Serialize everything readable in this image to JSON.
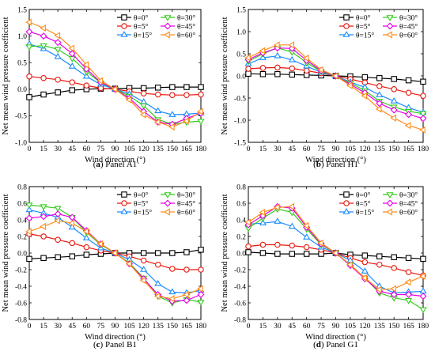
{
  "figure": {
    "angles": [
      "0",
      "5",
      "15",
      "30",
      "45",
      "60"
    ],
    "legend_prefix": "θ=",
    "legend_suffix": "°",
    "xlabel": "Wind direction (°)",
    "ylabel": "Net mean wind pressure coefficient",
    "colors": [
      "#000000",
      "#e8160c",
      "#1a8cff",
      "#33cc1a",
      "#e600e6",
      "#ff8c1a"
    ],
    "markers": [
      "square",
      "circle",
      "triangle-up",
      "triangle-down",
      "diamond",
      "triangle-left"
    ]
  },
  "chart_data": [
    {
      "type": "line",
      "caption_letter": "(a)",
      "caption_text": "Panel A1",
      "x": [
        0,
        15,
        30,
        45,
        60,
        75,
        90,
        105,
        120,
        135,
        150,
        165,
        180
      ],
      "xlim": [
        0,
        180
      ],
      "ylim": [
        -1.0,
        1.5
      ],
      "yticks": [
        -1.0,
        -0.5,
        0.0,
        0.5,
        1.0,
        1.5
      ],
      "series": [
        {
          "name": "θ=0°",
          "values": [
            -0.15,
            -0.1,
            -0.06,
            -0.02,
            0.0,
            0.01,
            0.01,
            0.02,
            0.02,
            0.03,
            0.04,
            0.04,
            0.04
          ]
        },
        {
          "name": "θ=5°",
          "values": [
            0.24,
            0.21,
            0.18,
            0.13,
            0.07,
            0.02,
            0.0,
            -0.04,
            -0.08,
            -0.1,
            -0.11,
            -0.11,
            -0.1
          ]
        },
        {
          "name": "θ=15°",
          "values": [
            0.85,
            0.76,
            0.61,
            0.43,
            0.24,
            0.09,
            0.0,
            -0.09,
            -0.24,
            -0.41,
            -0.48,
            -0.47,
            -0.45
          ]
        },
        {
          "name": "θ=30°",
          "values": [
            0.8,
            0.82,
            0.75,
            0.58,
            0.33,
            0.12,
            0.0,
            -0.13,
            -0.31,
            -0.57,
            -0.66,
            -0.62,
            -0.6
          ]
        },
        {
          "name": "θ=45°",
          "values": [
            1.08,
            1.0,
            0.88,
            0.67,
            0.38,
            0.13,
            0.0,
            -0.17,
            -0.42,
            -0.62,
            -0.66,
            -0.55,
            -0.45
          ]
        },
        {
          "name": "θ=60°",
          "values": [
            1.26,
            1.15,
            1.01,
            0.77,
            0.46,
            0.16,
            0.0,
            -0.2,
            -0.48,
            -0.62,
            -0.71,
            -0.6,
            -0.42
          ]
        }
      ]
    },
    {
      "type": "line",
      "caption_letter": "(b)",
      "caption_text": "Panel H1",
      "x": [
        0,
        15,
        30,
        45,
        60,
        75,
        90,
        105,
        120,
        135,
        150,
        165,
        180
      ],
      "xlim": [
        0,
        180
      ],
      "ylim": [
        -1.5,
        1.5
      ],
      "yticks": [
        -1.5,
        -1.0,
        -0.5,
        0.0,
        0.5,
        1.0,
        1.5
      ],
      "series": [
        {
          "name": "θ=0°",
          "values": [
            0.05,
            0.04,
            0.04,
            0.03,
            0.02,
            0.01,
            0.0,
            -0.01,
            -0.03,
            -0.05,
            -0.07,
            -0.1,
            -0.13
          ]
        },
        {
          "name": "θ=5°",
          "values": [
            0.16,
            0.18,
            0.19,
            0.17,
            0.12,
            0.06,
            0.0,
            -0.07,
            -0.15,
            -0.23,
            -0.3,
            -0.38,
            -0.45
          ]
        },
        {
          "name": "θ=15°",
          "values": [
            0.27,
            0.41,
            0.45,
            0.36,
            0.22,
            0.08,
            0.0,
            -0.14,
            -0.26,
            -0.43,
            -0.57,
            -0.72,
            -0.82
          ]
        },
        {
          "name": "θ=30°",
          "values": [
            0.33,
            0.5,
            0.63,
            0.54,
            0.3,
            0.1,
            0.0,
            -0.16,
            -0.33,
            -0.57,
            -0.7,
            -0.8,
            -0.85
          ]
        },
        {
          "name": "θ=45°",
          "values": [
            0.37,
            0.52,
            0.63,
            0.62,
            0.35,
            0.12,
            0.0,
            -0.19,
            -0.38,
            -0.62,
            -0.77,
            -0.87,
            -0.96
          ]
        },
        {
          "name": "θ=60°",
          "values": [
            0.41,
            0.57,
            0.7,
            0.7,
            0.4,
            0.14,
            0.0,
            -0.22,
            -0.45,
            -0.75,
            -0.95,
            -1.12,
            -1.22
          ]
        }
      ]
    },
    {
      "type": "line",
      "caption_letter": "(c)",
      "caption_text": "Panel B1",
      "x": [
        0,
        15,
        30,
        45,
        60,
        75,
        90,
        105,
        120,
        135,
        150,
        165,
        180
      ],
      "xlim": [
        0,
        180
      ],
      "ylim": [
        -0.8,
        0.8
      ],
      "yticks": [
        -0.8,
        -0.6,
        -0.4,
        -0.2,
        0.0,
        0.2,
        0.4,
        0.6,
        0.8
      ],
      "series": [
        {
          "name": "θ=0°",
          "values": [
            -0.07,
            -0.06,
            -0.05,
            -0.04,
            -0.02,
            -0.01,
            0.0,
            0.0,
            0.0,
            0.0,
            0.0,
            0.01,
            0.04
          ]
        },
        {
          "name": "θ=5°",
          "values": [
            0.23,
            0.2,
            0.16,
            0.12,
            0.07,
            0.03,
            0.0,
            -0.04,
            -0.09,
            -0.14,
            -0.19,
            -0.2,
            -0.2
          ]
        },
        {
          "name": "θ=15°",
          "values": [
            0.52,
            0.48,
            0.43,
            0.31,
            0.18,
            0.06,
            0.0,
            -0.08,
            -0.2,
            -0.37,
            -0.47,
            -0.48,
            -0.45
          ]
        },
        {
          "name": "θ=30°",
          "values": [
            0.58,
            0.56,
            0.54,
            0.43,
            0.25,
            0.1,
            0.0,
            -0.12,
            -0.3,
            -0.52,
            -0.6,
            -0.56,
            -0.59
          ]
        },
        {
          "name": "θ=45°",
          "values": [
            0.42,
            0.44,
            0.47,
            0.43,
            0.27,
            0.11,
            0.0,
            -0.13,
            -0.31,
            -0.5,
            -0.58,
            -0.57,
            -0.5
          ]
        },
        {
          "name": "θ=60°",
          "values": [
            0.26,
            0.32,
            0.39,
            0.36,
            0.26,
            0.11,
            0.0,
            -0.13,
            -0.33,
            -0.52,
            -0.55,
            -0.5,
            -0.43
          ]
        }
      ]
    },
    {
      "type": "line",
      "caption_letter": "(d)",
      "caption_text": "Panel G1",
      "x": [
        0,
        15,
        30,
        45,
        60,
        75,
        90,
        105,
        120,
        135,
        150,
        165,
        180
      ],
      "xlim": [
        0,
        180
      ],
      "ylim": [
        -0.8,
        0.8
      ],
      "yticks": [
        -0.8,
        -0.6,
        -0.4,
        -0.2,
        0.0,
        0.2,
        0.4,
        0.6,
        0.8
      ],
      "series": [
        {
          "name": "θ=0°",
          "values": [
            0.01,
            0.0,
            -0.01,
            -0.01,
            -0.01,
            -0.01,
            0.0,
            -0.02,
            -0.03,
            -0.04,
            -0.05,
            -0.06,
            -0.07
          ]
        },
        {
          "name": "θ=5°",
          "values": [
            0.08,
            0.1,
            0.1,
            0.09,
            0.07,
            0.04,
            0.0,
            -0.06,
            -0.11,
            -0.14,
            -0.18,
            -0.23,
            -0.27
          ]
        },
        {
          "name": "θ=15°",
          "values": [
            0.35,
            0.36,
            0.38,
            0.32,
            0.19,
            0.07,
            0.0,
            -0.09,
            -0.22,
            -0.4,
            -0.48,
            -0.47,
            -0.46
          ]
        },
        {
          "name": "θ=30°",
          "values": [
            0.3,
            0.42,
            0.53,
            0.49,
            0.29,
            0.1,
            0.0,
            -0.14,
            -0.3,
            -0.48,
            -0.54,
            -0.57,
            -0.68
          ]
        },
        {
          "name": "θ=45°",
          "values": [
            0.34,
            0.45,
            0.56,
            0.54,
            0.31,
            0.11,
            0.0,
            -0.15,
            -0.31,
            -0.46,
            -0.5,
            -0.5,
            -0.52
          ]
        },
        {
          "name": "θ=60°",
          "values": [
            0.37,
            0.49,
            0.55,
            0.56,
            0.33,
            0.12,
            0.0,
            -0.14,
            -0.3,
            -0.44,
            -0.43,
            -0.35,
            -0.28
          ]
        }
      ]
    }
  ]
}
